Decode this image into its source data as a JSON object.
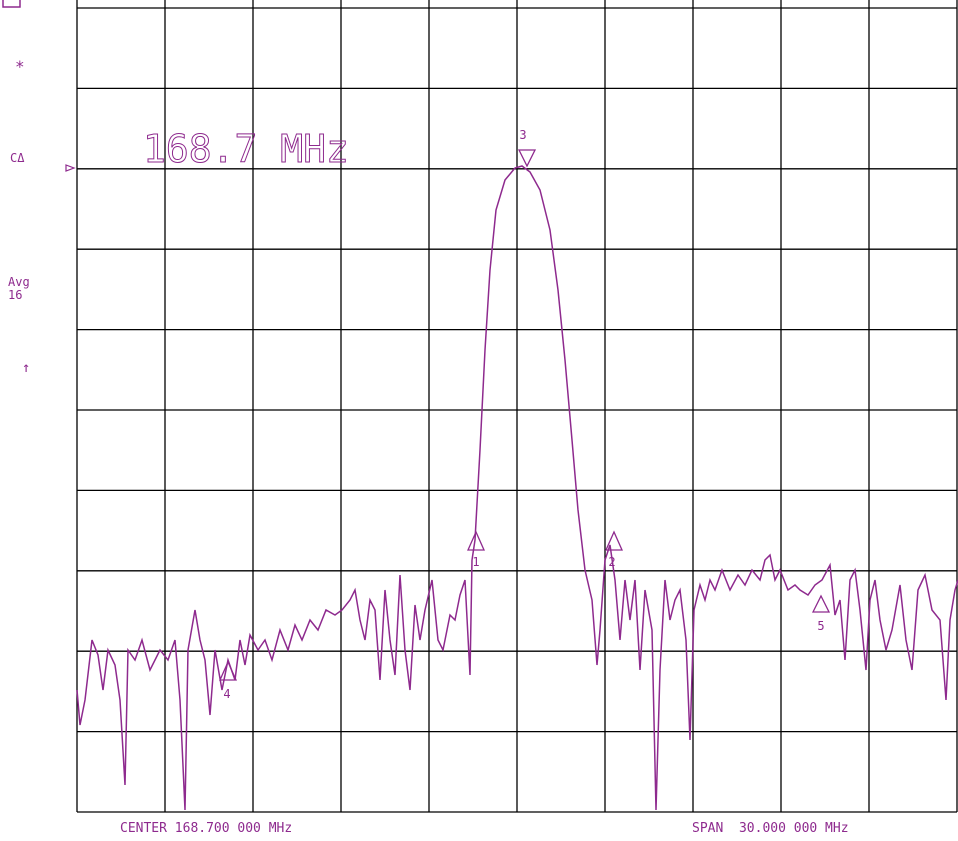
{
  "side_labels": {
    "mode": "*",
    "channel": "CΔ",
    "avg": "Avg",
    "avg_count": "16",
    "arrow": "↑"
  },
  "marker_readout": "168.7 MHz",
  "markers": [
    "1",
    "3",
    "2",
    "4",
    "5"
  ],
  "footer": {
    "center": "CENTER 168.700 000 MHz",
    "span": "SPAN  30.000 000 MHz"
  }
}
